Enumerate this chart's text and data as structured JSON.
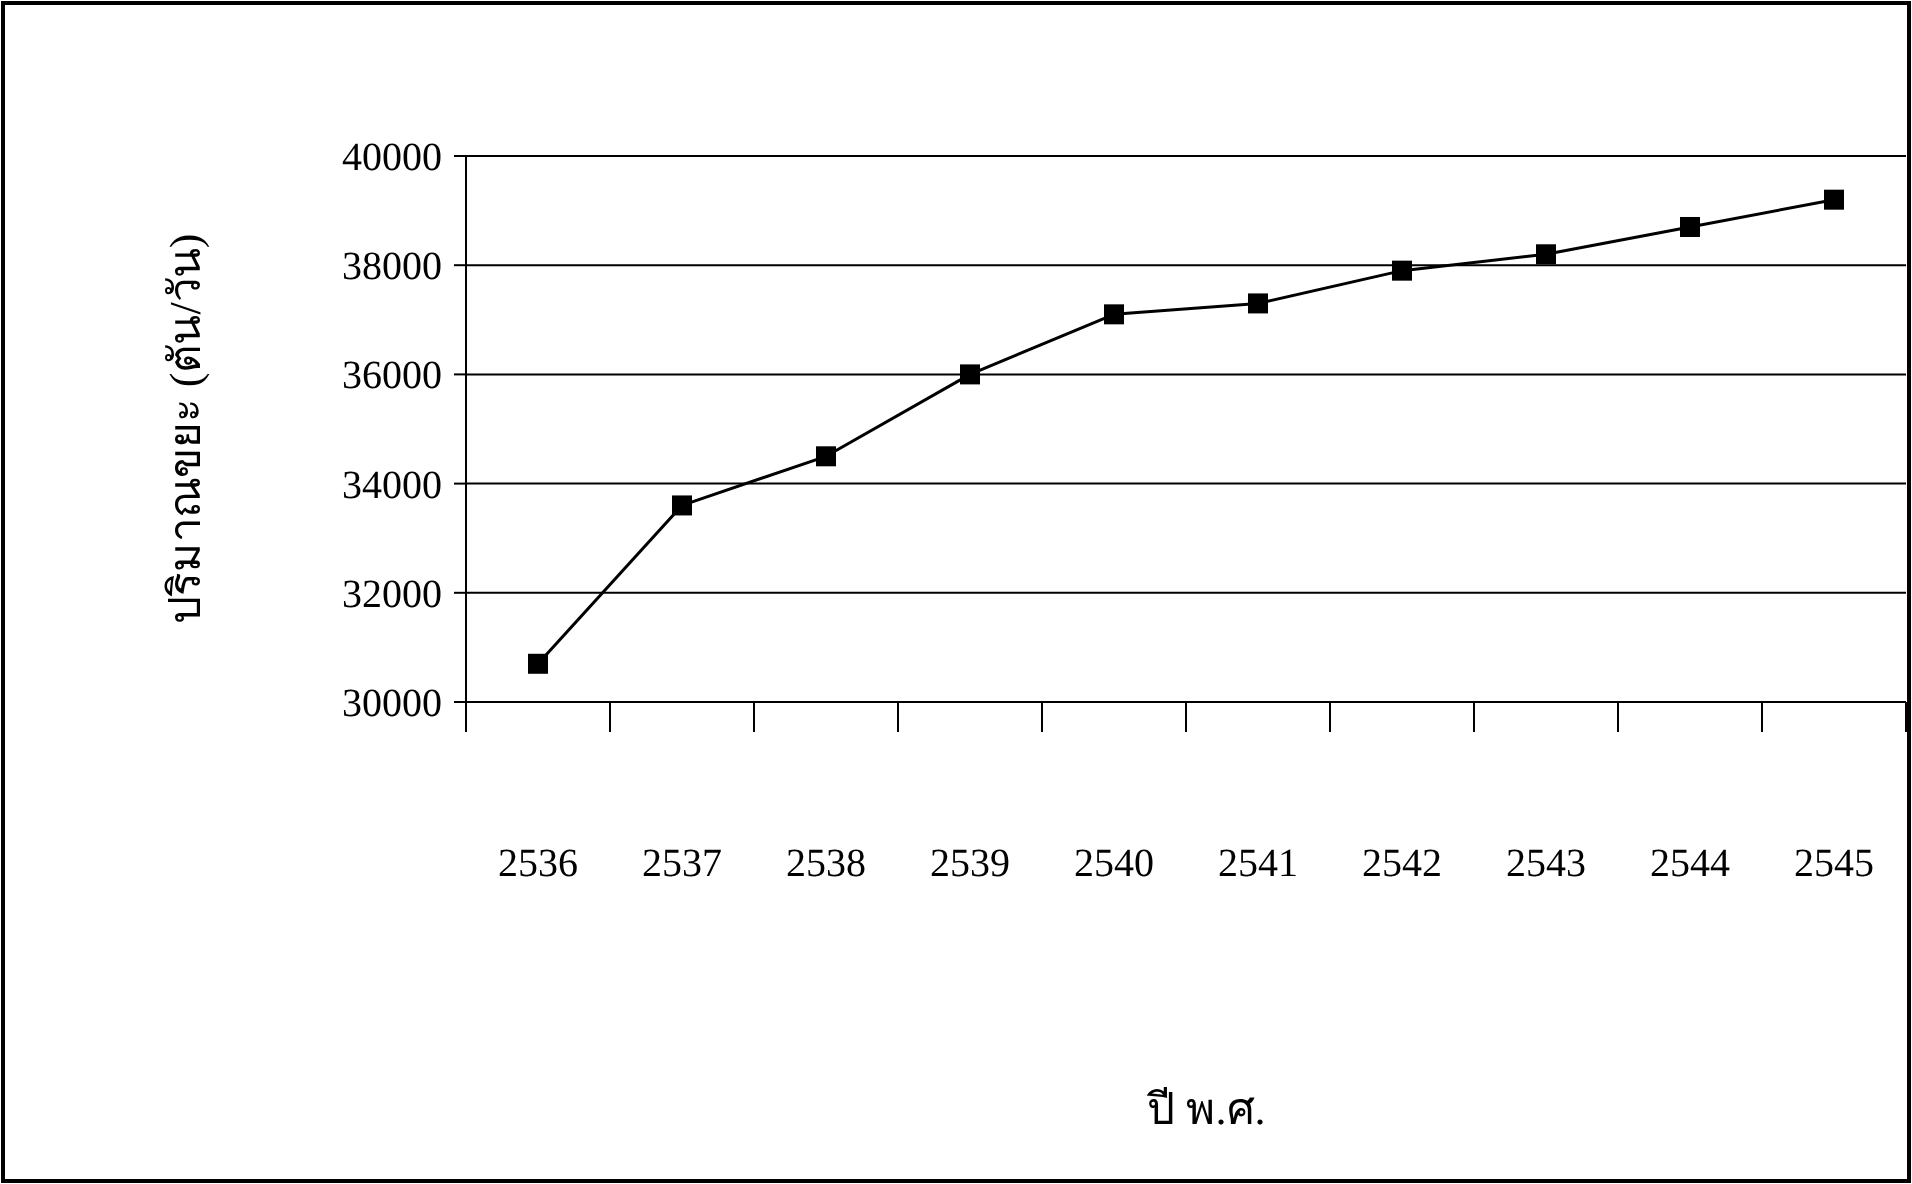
{
  "chart_data": {
    "type": "line",
    "xlabel": "ปี พ.ศ.",
    "ylabel": "ปริมาณขยะ (ตัน/วัน)",
    "categories": [
      "2536",
      "2537",
      "2538",
      "2539",
      "2540",
      "2541",
      "2542",
      "2543",
      "2544",
      "2545"
    ],
    "series": [
      {
        "color": "#000000",
        "values": [
          30700,
          33600,
          34500,
          36000,
          37100,
          37300,
          37900,
          38200,
          38700,
          39200
        ]
      }
    ],
    "ylim": [
      30000,
      40000
    ],
    "yticks": [
      30000,
      32000,
      34000,
      36000,
      38000,
      40000
    ],
    "grid": "y",
    "marker": "square",
    "line_style": "solid"
  }
}
